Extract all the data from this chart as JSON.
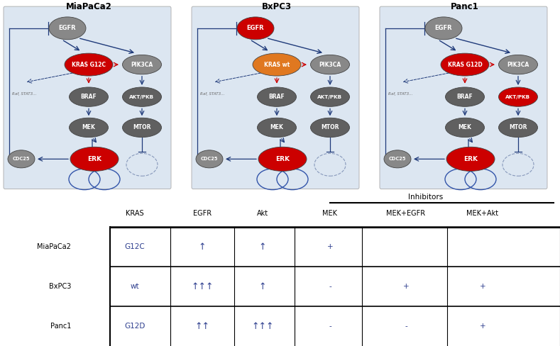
{
  "title_mia": "MiaPaCa2",
  "title_bx": "BxPC3",
  "title_panc": "Panc1",
  "bg_color": "#dce6f1",
  "node_gray": "#888888",
  "node_red": "#cc0000",
  "node_orange": "#e07820",
  "node_dark": "#606060",
  "arrow_blue": "#1f3a7a",
  "arrow_red": "#cc0000",
  "inhibitors_label": "Inhibitors",
  "col_headers": [
    "KRAS",
    "EGFR",
    "Akt",
    "MEK",
    "MEK+EGFR",
    "MEK+Akt"
  ],
  "row_labels": [
    "MiaPaCa2",
    "BxPC3",
    "Panc1"
  ],
  "kras_labels": [
    "KRAS G12C",
    "KRAS wt",
    "KRAS G12D"
  ],
  "kras_colors": [
    "#cc0000",
    "#e07820",
    "#cc0000"
  ],
  "egfr_colors": [
    "#888888",
    "#cc0000",
    "#888888"
  ],
  "akt_colors": [
    "#606060",
    "#606060",
    "#cc0000"
  ],
  "table_data": [
    [
      "G12C",
      "↑",
      "↑",
      "+",
      "",
      ""
    ],
    [
      "wt",
      "↑↑↑",
      "↑",
      "-",
      "+",
      "+"
    ],
    [
      "G12D",
      "↑↑",
      "↑↑↑",
      "-",
      "-",
      "+"
    ]
  ],
  "arrow_color": "#2e3f8f"
}
